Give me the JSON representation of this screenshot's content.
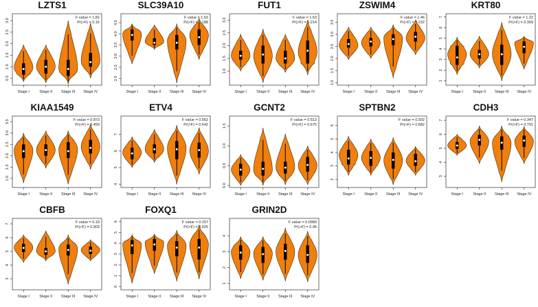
{
  "meta": {
    "stage_labels": [
      "Stage I",
      "Stage II",
      "Stage III",
      "Stage IV"
    ]
  },
  "colors": {
    "violin_fill": "#F07F0E",
    "violin_stroke": "#3a2a10",
    "box": "#000000",
    "median": "#ffffff",
    "axis": "#333333",
    "frame": "#444444"
  },
  "chart_data": [
    {
      "type": "violin",
      "title": "LZTS1",
      "categories": [
        "Stage I",
        "Stage II",
        "Stage III",
        "Stage IV"
      ],
      "f_label": "F value = 1.82",
      "p_label": "Pr(>F) = 0.15",
      "yticks": [
        "0.5",
        "1.0",
        "1.5",
        "2.0",
        "2.5",
        "3.0"
      ],
      "ylim": [
        0.2,
        3.3
      ],
      "series": [
        {
          "name": "Stage I",
          "min": 0.35,
          "q1": 0.65,
          "median": 0.9,
          "q3": 1.15,
          "max": 1.95,
          "mode": 0.95
        },
        {
          "name": "Stage II",
          "min": 0.3,
          "q1": 0.7,
          "median": 1.0,
          "q3": 1.3,
          "max": 1.95,
          "mode": 1.0
        },
        {
          "name": "Stage III",
          "min": 0.25,
          "q1": 0.6,
          "median": 0.9,
          "q3": 1.3,
          "max": 3.0,
          "mode": 0.9
        },
        {
          "name": "Stage IV",
          "min": 0.5,
          "q1": 1.0,
          "median": 1.2,
          "q3": 1.6,
          "max": 2.9,
          "mode": 1.25
        }
      ]
    },
    {
      "type": "violin",
      "title": "SLC39A10",
      "categories": [
        "Stage I",
        "Stage II",
        "Stage III",
        "Stage IV"
      ],
      "f_label": "F value = 1.63",
      "p_label": "Pr(>F) = 0.188",
      "yticks": [
        "2.0",
        "2.5",
        "3.0",
        "3.5",
        "4.0",
        "4.5"
      ],
      "ylim": [
        1.7,
        4.9
      ],
      "series": [
        {
          "name": "Stage I",
          "min": 2.65,
          "q1": 3.7,
          "median": 3.95,
          "q3": 4.2,
          "max": 4.45,
          "mode": 4.0
        },
        {
          "name": "Stage II",
          "min": 3.3,
          "q1": 3.5,
          "median": 3.6,
          "q3": 3.8,
          "max": 4.4,
          "mode": 3.65
        },
        {
          "name": "Stage III",
          "min": 1.8,
          "q1": 3.3,
          "median": 3.6,
          "q3": 3.95,
          "max": 4.45,
          "mode": 3.7
        },
        {
          "name": "Stage IV",
          "min": 2.85,
          "q1": 3.5,
          "median": 3.85,
          "q3": 4.2,
          "max": 4.7,
          "mode": 3.95
        }
      ]
    },
    {
      "type": "violin",
      "title": "FUT1",
      "categories": [
        "Stage I",
        "Stage II",
        "Stage III",
        "Stage IV"
      ],
      "f_label": "F value = 1.53",
      "p_label": "Pr(>F) = 0.214",
      "yticks": [
        "1.0",
        "1.5",
        "2.0",
        "2.5",
        "3.0"
      ],
      "ylim": [
        0.45,
        3.25
      ],
      "series": [
        {
          "name": "Stage I",
          "min": 1.0,
          "q1": 1.45,
          "median": 1.6,
          "q3": 1.8,
          "max": 2.45,
          "mode": 1.6
        },
        {
          "name": "Stage II",
          "min": 0.55,
          "q1": 1.3,
          "median": 1.65,
          "q3": 2.0,
          "max": 2.65,
          "mode": 1.6
        },
        {
          "name": "Stage III",
          "min": 0.95,
          "q1": 1.3,
          "median": 1.5,
          "q3": 1.8,
          "max": 2.45,
          "mode": 1.5
        },
        {
          "name": "Stage IV",
          "min": 0.85,
          "q1": 1.3,
          "median": 1.8,
          "q3": 2.2,
          "max": 3.0,
          "mode": 1.75
        }
      ]
    },
    {
      "type": "violin",
      "title": "ZSWIM4",
      "categories": [
        "Stage I",
        "Stage II",
        "Stage III",
        "Stage IV"
      ],
      "f_label": "F value = 1.46",
      "p_label": "Pr(>F) = 0.232",
      "yticks": [
        "1.0",
        "1.5",
        "2.0",
        "2.5",
        "3.0",
        "3.5"
      ],
      "ylim": [
        0.9,
        3.85
      ],
      "series": [
        {
          "name": "Stage I",
          "min": 1.95,
          "q1": 2.45,
          "median": 2.6,
          "q3": 2.8,
          "max": 3.3,
          "mode": 2.55
        },
        {
          "name": "Stage II",
          "min": 2.0,
          "q1": 2.5,
          "median": 2.7,
          "q3": 2.85,
          "max": 3.3,
          "mode": 2.65
        },
        {
          "name": "Stage III",
          "min": 1.2,
          "q1": 2.55,
          "median": 2.8,
          "q3": 3.0,
          "max": 3.4,
          "mode": 2.85
        },
        {
          "name": "Stage IV",
          "min": 2.15,
          "q1": 2.7,
          "median": 2.9,
          "q3": 3.1,
          "max": 3.6,
          "mode": 2.85
        }
      ]
    },
    {
      "type": "violin",
      "title": "KRT80",
      "categories": [
        "Stage I",
        "Stage II",
        "Stage III",
        "Stage IV"
      ],
      "f_label": "F value = 1.22",
      "p_label": "Pr(>F) = 0.309",
      "yticks": [
        "1",
        "2",
        "3",
        "4",
        "5",
        "6",
        "7"
      ],
      "ylim": [
        0.6,
        7.3
      ],
      "series": [
        {
          "name": "Stage I",
          "min": 1.6,
          "q1": 2.5,
          "median": 3.2,
          "q3": 4.3,
          "max": 5.1,
          "mode": 3.5
        },
        {
          "name": "Stage II",
          "min": 2.2,
          "q1": 3.1,
          "median": 3.5,
          "q3": 3.9,
          "max": 5.2,
          "mode": 3.5
        },
        {
          "name": "Stage III",
          "min": 1.0,
          "q1": 2.5,
          "median": 3.5,
          "q3": 4.4,
          "max": 6.5,
          "mode": 3.5
        },
        {
          "name": "Stage IV",
          "min": 2.1,
          "q1": 3.6,
          "median": 4.2,
          "q3": 4.7,
          "max": 5.2,
          "mode": 4.6
        }
      ]
    },
    {
      "type": "violin",
      "title": "KIAA1549",
      "categories": [
        "Stage I",
        "Stage II",
        "Stage III",
        "Stage IV"
      ],
      "f_label": "F value = 0.873",
      "p_label": "Pr(>F) = 0.459",
      "yticks": [
        "1.0",
        "1.5",
        "2.0",
        "2.5",
        "3.0",
        "3.5"
      ],
      "ylim": [
        0.6,
        3.75
      ],
      "series": [
        {
          "name": "Stage I",
          "min": 0.8,
          "q1": 1.9,
          "median": 2.2,
          "q3": 2.5,
          "max": 3.0,
          "mode": 2.25
        },
        {
          "name": "Stage II",
          "min": 1.45,
          "q1": 2.0,
          "median": 2.25,
          "q3": 2.5,
          "max": 3.1,
          "mode": 2.25
        },
        {
          "name": "Stage III",
          "min": 0.75,
          "q1": 1.9,
          "median": 2.2,
          "q3": 2.6,
          "max": 3.1,
          "mode": 2.3
        },
        {
          "name": "Stage IV",
          "min": 1.4,
          "q1": 2.1,
          "median": 2.35,
          "q3": 2.7,
          "max": 3.4,
          "mode": 2.4
        }
      ]
    },
    {
      "type": "violin",
      "title": "ETV4",
      "categories": [
        "Stage I",
        "Stage II",
        "Stage III",
        "Stage IV"
      ],
      "f_label": "F value = 0.562",
      "p_label": "Pr(>F) = 0.642",
      "yticks": [
        "4",
        "5",
        "6",
        "7"
      ],
      "ylim": [
        3.8,
        8.1
      ],
      "series": [
        {
          "name": "Stage I",
          "min": 5.0,
          "q1": 5.5,
          "median": 5.85,
          "q3": 6.2,
          "max": 6.85,
          "mode": 5.9
        },
        {
          "name": "Stage II",
          "min": 5.3,
          "q1": 5.85,
          "median": 6.1,
          "q3": 6.4,
          "max": 7.3,
          "mode": 6.1
        },
        {
          "name": "Stage III",
          "min": 4.0,
          "q1": 5.5,
          "median": 6.1,
          "q3": 6.6,
          "max": 7.55,
          "mode": 6.2
        },
        {
          "name": "Stage IV",
          "min": 4.6,
          "q1": 5.6,
          "median": 6.05,
          "q3": 6.5,
          "max": 7.4,
          "mode": 6.0
        }
      ]
    },
    {
      "type": "violin",
      "title": "GCNT2",
      "categories": [
        "Stage I",
        "Stage II",
        "Stage III",
        "Stage IV"
      ],
      "f_label": "F value = 0.513",
      "p_label": "Pr(>F) = 0.675",
      "yticks": [
        "0.0",
        "0.5",
        "1.0",
        "1.5"
      ],
      "ylim": [
        -0.05,
        1.75
      ],
      "series": [
        {
          "name": "Stage I",
          "min": 0.0,
          "q1": 0.25,
          "median": 0.4,
          "q3": 0.55,
          "max": 0.78,
          "mode": 0.4
        },
        {
          "name": "Stage II",
          "min": 0.0,
          "q1": 0.25,
          "median": 0.42,
          "q3": 0.6,
          "max": 1.45,
          "mode": 0.38
        },
        {
          "name": "Stage III",
          "min": 0.02,
          "q1": 0.3,
          "median": 0.45,
          "q3": 0.6,
          "max": 1.3,
          "mode": 0.45
        },
        {
          "name": "Stage IV",
          "min": 0.02,
          "q1": 0.35,
          "median": 0.52,
          "q3": 0.72,
          "max": 1.0,
          "mode": 0.5
        }
      ]
    },
    {
      "type": "violin",
      "title": "SPTBN2",
      "categories": [
        "Stage I",
        "Stage II",
        "Stage III",
        "Stage IV"
      ],
      "f_label": "F value = 0.502",
      "p_label": "Pr(>F) = 0.682",
      "yticks": [
        "2",
        "3",
        "4",
        "5",
        "6"
      ],
      "ylim": [
        1.4,
        6.7
      ],
      "series": [
        {
          "name": "Stage I",
          "min": 2.3,
          "q1": 3.1,
          "median": 3.55,
          "q3": 4.2,
          "max": 5.2,
          "mode": 3.8
        },
        {
          "name": "Stage II",
          "min": 2.3,
          "q1": 3.0,
          "median": 3.6,
          "q3": 4.1,
          "max": 5.0,
          "mode": 3.6
        },
        {
          "name": "Stage III",
          "min": 1.6,
          "q1": 2.8,
          "median": 3.45,
          "q3": 4.0,
          "max": 5.1,
          "mode": 3.4
        },
        {
          "name": "Stage IV",
          "min": 2.3,
          "q1": 3.0,
          "median": 3.35,
          "q3": 3.9,
          "max": 4.45,
          "mode": 3.4
        }
      ]
    },
    {
      "type": "violin",
      "title": "CDH3",
      "categories": [
        "Stage I",
        "Stage II",
        "Stage III",
        "Stage IV"
      ],
      "f_label": "F value = 0.347",
      "p_label": "Pr(>F) = 0.791",
      "yticks": [
        "3",
        "4",
        "5",
        "6",
        "7"
      ],
      "ylim": [
        2.2,
        7.3
      ],
      "series": [
        {
          "name": "Stage I",
          "min": 4.5,
          "q1": 4.95,
          "median": 5.2,
          "q3": 5.45,
          "max": 6.0,
          "mode": 5.2
        },
        {
          "name": "Stage II",
          "min": 3.9,
          "q1": 5.2,
          "median": 5.6,
          "q3": 5.95,
          "max": 6.6,
          "mode": 5.5
        },
        {
          "name": "Stage III",
          "min": 2.6,
          "q1": 4.9,
          "median": 5.4,
          "q3": 5.85,
          "max": 6.6,
          "mode": 5.4
        },
        {
          "name": "Stage IV",
          "min": 3.9,
          "q1": 5.1,
          "median": 5.55,
          "q3": 5.9,
          "max": 6.55,
          "mode": 5.5
        }
      ]
    },
    {
      "type": "violin",
      "title": "CBFB",
      "categories": [
        "Stage I",
        "Stage II",
        "Stage III",
        "Stage IV"
      ],
      "f_label": "F value = 0.19",
      "p_label": "Pr(>F) = 0.903",
      "yticks": [
        "3",
        "4",
        "5",
        "6",
        "7"
      ],
      "ylim": [
        2.2,
        7.4
      ],
      "series": [
        {
          "name": "Stage I",
          "min": 4.2,
          "q1": 4.95,
          "median": 5.25,
          "q3": 5.55,
          "max": 6.2,
          "mode": 5.3
        },
        {
          "name": "Stage II",
          "min": 4.3,
          "q1": 4.75,
          "median": 5.0,
          "q3": 5.25,
          "max": 6.5,
          "mode": 5.0
        },
        {
          "name": "Stage III",
          "min": 2.6,
          "q1": 4.7,
          "median": 5.1,
          "q3": 5.5,
          "max": 6.2,
          "mode": 5.2
        },
        {
          "name": "Stage IV",
          "min": 4.3,
          "q1": 4.8,
          "median": 5.05,
          "q3": 5.35,
          "max": 5.85,
          "mode": 5.1
        }
      ]
    },
    {
      "type": "violin",
      "title": "FOXQ1",
      "categories": [
        "Stage I",
        "Stage II",
        "Stage III",
        "Stage IV"
      ],
      "f_label": "F value = 0.157",
      "p_label": "Pr(>F) = 0.925",
      "yticks": [
        "0",
        "1",
        "2",
        "3",
        "4",
        "5",
        "6"
      ],
      "ylim": [
        -0.3,
        6.3
      ],
      "series": [
        {
          "name": "Stage I",
          "min": 0.3,
          "q1": 3.0,
          "median": 3.8,
          "q3": 4.3,
          "max": 4.8,
          "mode": 4.0
        },
        {
          "name": "Stage II",
          "min": 1.2,
          "q1": 3.3,
          "median": 3.9,
          "q3": 4.4,
          "max": 4.85,
          "mode": 4.1
        },
        {
          "name": "Stage III",
          "min": 0.5,
          "q1": 2.8,
          "median": 3.6,
          "q3": 4.2,
          "max": 5.2,
          "mode": 3.8
        },
        {
          "name": "Stage IV",
          "min": 0.7,
          "q1": 2.5,
          "median": 3.6,
          "q3": 4.4,
          "max": 5.7,
          "mode": 3.9
        }
      ]
    },
    {
      "type": "violin",
      "title": "GRIN2D",
      "categories": [
        "Stage I",
        "Stage II",
        "Stage III",
        "Stage IV"
      ],
      "f_label": "F value = 0.0989",
      "p_label": "Pr(>F) = 0.96",
      "yticks": [
        "1",
        "2",
        "3",
        "4"
      ],
      "ylim": [
        0.6,
        5.1
      ],
      "series": [
        {
          "name": "Stage I",
          "min": 1.3,
          "q1": 2.5,
          "median": 2.95,
          "q3": 3.4,
          "max": 3.95,
          "mode": 3.0
        },
        {
          "name": "Stage II",
          "min": 1.2,
          "q1": 2.3,
          "median": 2.85,
          "q3": 3.3,
          "max": 3.95,
          "mode": 2.9
        },
        {
          "name": "Stage III",
          "min": 1.15,
          "q1": 2.5,
          "median": 3.05,
          "q3": 3.5,
          "max": 4.5,
          "mode": 3.0
        },
        {
          "name": "Stage IV",
          "min": 1.1,
          "q1": 2.3,
          "median": 2.8,
          "q3": 3.4,
          "max": 4.3,
          "mode": 2.8
        }
      ]
    }
  ]
}
